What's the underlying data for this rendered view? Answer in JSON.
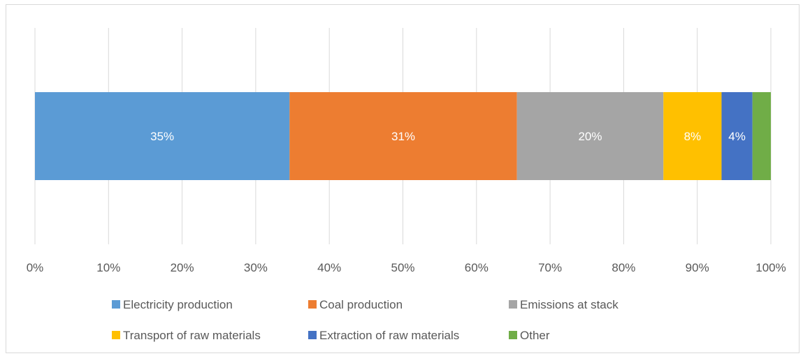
{
  "chart_data": {
    "type": "bar",
    "orientation": "horizontal",
    "stacked": true,
    "percent": true,
    "categories": [
      ""
    ],
    "series": [
      {
        "name": "Electricity production",
        "values": [
          34.6
        ],
        "label": "35%",
        "color": "#5b9bd5"
      },
      {
        "name": "Coal production",
        "values": [
          30.9
        ],
        "label": "31%",
        "color": "#ed7d31"
      },
      {
        "name": "Emissions at stack",
        "values": [
          19.9
        ],
        "label": "20%",
        "color": "#a5a5a5"
      },
      {
        "name": "Transport of raw materials",
        "values": [
          7.9
        ],
        "label": "8%",
        "color": "#ffc000"
      },
      {
        "name": "Extraction of raw materials",
        "values": [
          4.2
        ],
        "label": "4%",
        "color": "#4472c4"
      },
      {
        "name": "Other",
        "values": [
          2.5
        ],
        "label": "",
        "color": "#70ad47"
      }
    ],
    "xlim": [
      0,
      100
    ],
    "xticks": [
      "0%",
      "10%",
      "20%",
      "30%",
      "40%",
      "50%",
      "60%",
      "70%",
      "80%",
      "90%",
      "100%"
    ],
    "title": "",
    "xlabel": "",
    "ylabel": "",
    "grid": true,
    "legend": "bottom"
  }
}
